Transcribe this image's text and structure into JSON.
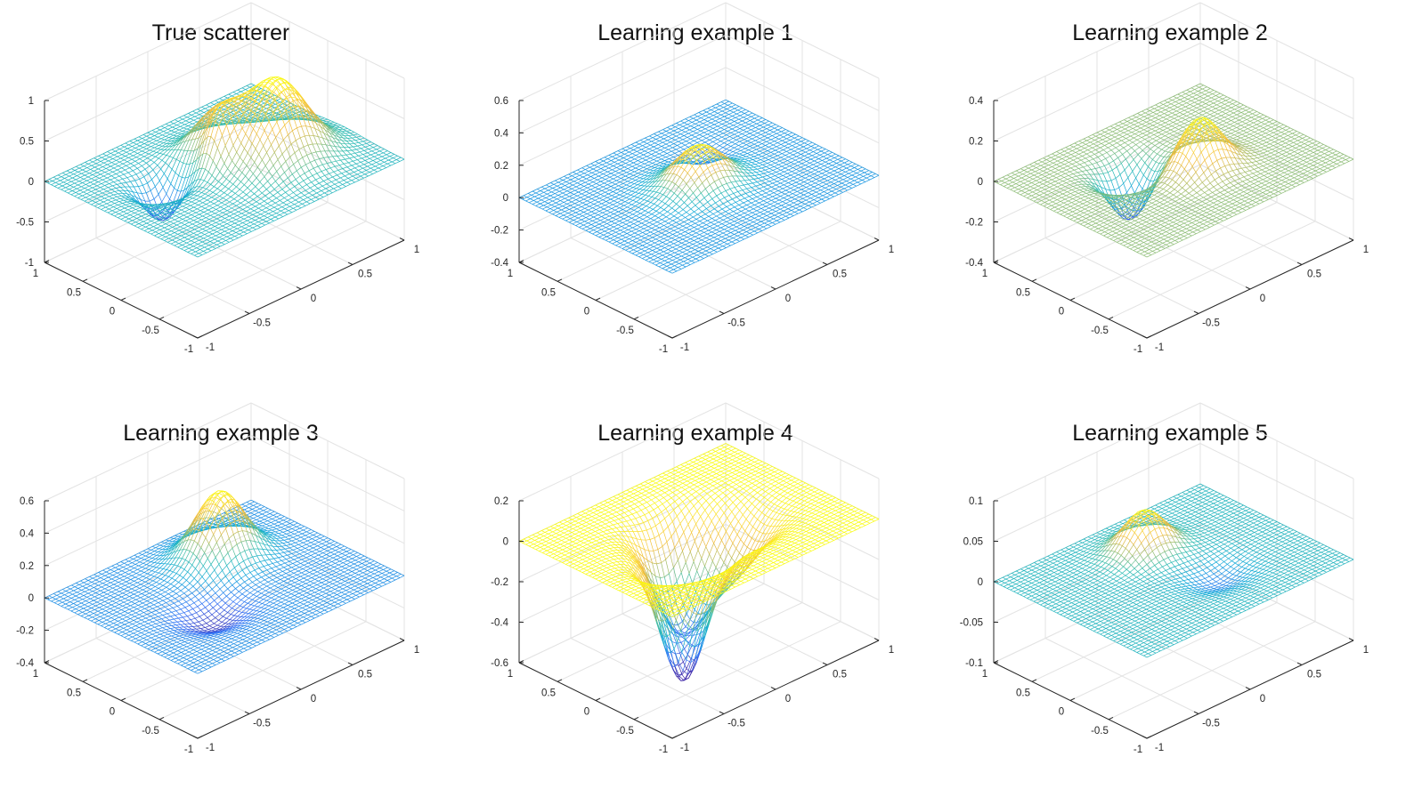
{
  "figure": {
    "colormap": [
      "#3e26a8",
      "#2f6ef6",
      "#10a8d8",
      "#2ebcaf",
      "#a3bd6a",
      "#f0ba3d",
      "#fcdc31",
      "#f9fb0e"
    ]
  },
  "chart_data": [
    {
      "type": "surface",
      "title": "True scatterer",
      "x": {
        "range": [
          -1,
          1
        ],
        "ticks": [
          -1,
          -0.5,
          0,
          0.5,
          1
        ],
        "tick_labels": [
          "-1",
          "-0.5",
          "0",
          "0.5",
          "1"
        ]
      },
      "y": {
        "range": [
          -1,
          1
        ],
        "ticks": [
          -1,
          -0.5,
          0,
          0.5,
          1
        ],
        "tick_labels": [
          "-1",
          "-0.5",
          "0",
          "0.5",
          "1"
        ]
      },
      "z": {
        "range": [
          -1,
          1
        ],
        "ticks": [
          -1,
          -0.5,
          0,
          0.5,
          1
        ],
        "tick_labels": [
          "-1",
          "-0.5",
          "0",
          "0.5",
          "1"
        ]
      },
      "color_range": [
        -0.6,
        1
      ],
      "bumps": [
        {
          "x": -0.2,
          "y": 0.35,
          "amplitude": 1.0,
          "width": 0.25
        },
        {
          "x": 0.25,
          "y": 0.1,
          "amplitude": 0.5,
          "width": 0.2
        },
        {
          "x": 0.0,
          "y": -0.05,
          "amplitude": 0.4,
          "width": 0.1
        },
        {
          "x": 0.25,
          "y": -0.4,
          "amplitude": -0.5,
          "width": 0.15
        }
      ]
    },
    {
      "type": "surface",
      "title": "Learning example 1",
      "x": {
        "range": [
          -1,
          1
        ],
        "ticks": [
          -1,
          -0.5,
          0,
          0.5,
          1
        ],
        "tick_labels": [
          "-1",
          "-0.5",
          "0",
          "0.5",
          "1"
        ]
      },
      "y": {
        "range": [
          -1,
          1
        ],
        "ticks": [
          -1,
          -0.5,
          0,
          0.5,
          1
        ],
        "tick_labels": [
          "-1",
          "-0.5",
          "0",
          "0.5",
          "1"
        ]
      },
      "z": {
        "range": [
          -0.4,
          0.6
        ],
        "ticks": [
          -0.4,
          -0.2,
          0,
          0.2,
          0.4,
          0.6
        ],
        "tick_labels": [
          "-0.4",
          "-0.2",
          "0",
          "0.2",
          "0.4",
          "0.6"
        ]
      },
      "color_range": [
        -0.08,
        0.25
      ],
      "bumps": [
        {
          "x": 0.0,
          "y": 0.0,
          "amplitude": 0.25,
          "width": 0.2
        },
        {
          "x": 0.35,
          "y": 0.3,
          "amplitude": -0.05,
          "width": 0.12
        }
      ]
    },
    {
      "type": "surface",
      "title": "Learning example 2",
      "x": {
        "range": [
          -1,
          1
        ],
        "ticks": [
          -1,
          -0.5,
          0,
          0.5,
          1
        ],
        "tick_labels": [
          "-1",
          "-0.5",
          "0",
          "0.5",
          "1"
        ]
      },
      "y": {
        "range": [
          -1,
          1
        ],
        "ticks": [
          -1,
          -0.5,
          0,
          0.5,
          1
        ],
        "tick_labels": [
          "-1",
          "-0.5",
          "0",
          "0.5",
          "1"
        ]
      },
      "z": {
        "range": [
          -0.4,
          0.4
        ],
        "ticks": [
          -0.4,
          -0.2,
          0,
          0.2,
          0.4
        ],
        "tick_labels": [
          "-0.4",
          "-0.2",
          "0",
          "0.2",
          "0.4"
        ]
      },
      "color_range": [
        -0.3,
        0.25
      ],
      "bumps": [
        {
          "x": -0.15,
          "y": 0.15,
          "amplitude": 0.25,
          "width": 0.17
        },
        {
          "x": 0.3,
          "y": -0.2,
          "amplitude": -0.25,
          "width": 0.16
        }
      ]
    },
    {
      "type": "surface",
      "title": "Learning example 3",
      "x": {
        "range": [
          -1,
          1
        ],
        "ticks": [
          -1,
          -0.5,
          0,
          0.5,
          1
        ],
        "tick_labels": [
          "-1",
          "-0.5",
          "0",
          "0.5",
          "1"
        ]
      },
      "y": {
        "range": [
          -1,
          1
        ],
        "ticks": [
          -1,
          -0.5,
          0,
          0.5,
          1
        ],
        "tick_labels": [
          "-1",
          "-0.5",
          "0",
          "0.5",
          "1"
        ]
      },
      "z": {
        "range": [
          -0.4,
          0.6
        ],
        "ticks": [
          -0.4,
          -0.2,
          0,
          0.2,
          0.4,
          0.6
        ],
        "tick_labels": [
          "-0.4",
          "-0.2",
          "0",
          "0.2",
          "0.4",
          "0.6"
        ]
      },
      "color_range": [
        -0.12,
        0.42
      ],
      "bumps": [
        {
          "x": 0.4,
          "y": 0.25,
          "amplitude": 0.42,
          "width": 0.2
        },
        {
          "x": -0.25,
          "y": -0.3,
          "amplitude": -0.1,
          "width": 0.2
        }
      ]
    },
    {
      "type": "surface",
      "title": "Learning example 4",
      "x": {
        "range": [
          -1,
          1
        ],
        "ticks": [
          -1,
          -0.5,
          0,
          0.5,
          1
        ],
        "tick_labels": [
          "-1",
          "-0.5",
          "0",
          "0.5",
          "1"
        ]
      },
      "y": {
        "range": [
          -1,
          1
        ],
        "ticks": [
          -1,
          -0.5,
          0,
          0.5,
          1
        ],
        "tick_labels": [
          "-1",
          "-0.5",
          "0",
          "0.5",
          "1"
        ]
      },
      "z": {
        "range": [
          -0.6,
          0.2
        ],
        "ticks": [
          -0.6,
          -0.4,
          -0.2,
          0,
          0.2
        ],
        "tick_labels": [
          "-0.6",
          "-0.4",
          "-0.2",
          "0",
          "0.2"
        ]
      },
      "color_range": [
        -0.6,
        0.0
      ],
      "bumps": [
        {
          "x": -0.2,
          "y": -0.3,
          "amplitude": -0.6,
          "width": 0.18
        },
        {
          "x": 0.2,
          "y": -0.05,
          "amplitude": -0.45,
          "width": 0.2
        },
        {
          "x": -0.1,
          "y": 0.25,
          "amplitude": -0.25,
          "width": 0.22
        }
      ]
    },
    {
      "type": "surface",
      "title": "Learning example 5",
      "x": {
        "range": [
          -1,
          1
        ],
        "ticks": [
          -1,
          -0.5,
          0,
          0.5,
          1
        ],
        "tick_labels": [
          "-1",
          "-0.5",
          "0",
          "0.5",
          "1"
        ]
      },
      "y": {
        "range": [
          -1,
          1
        ],
        "ticks": [
          -1,
          -0.5,
          0,
          0.5,
          1
        ],
        "tick_labels": [
          "-1",
          "-0.5",
          "0",
          "0.5",
          "1"
        ]
      },
      "z": {
        "range": [
          -0.1,
          0.1
        ],
        "ticks": [
          -0.1,
          -0.05,
          0,
          0.05,
          0.1
        ],
        "tick_labels": [
          "-0.1",
          "-0.05",
          "0",
          "0.05",
          "0.1"
        ]
      },
      "color_range": [
        -0.03,
        0.05
      ],
      "bumps": [
        {
          "x": 0.45,
          "y": 0.05,
          "amplitude": 0.05,
          "width": 0.17
        },
        {
          "x": -0.3,
          "y": 0.2,
          "amplitude": -0.015,
          "width": 0.2
        }
      ]
    }
  ]
}
